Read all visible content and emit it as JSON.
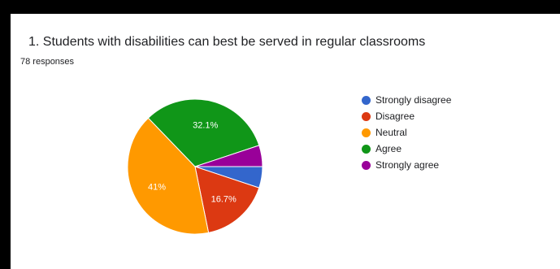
{
  "chart_data": {
    "type": "pie",
    "title": "1. Students with disabilities can best be served in regular classrooms",
    "subtitle": "78 responses",
    "legend_position": "right",
    "series": [
      {
        "name": "Strongly disagree",
        "value": 5.1,
        "color": "#3366cc",
        "label": ""
      },
      {
        "name": "Disagree",
        "value": 16.7,
        "color": "#dc3912",
        "label": "16.7%"
      },
      {
        "name": "Neutral",
        "value": 41.0,
        "color": "#ff9900",
        "label": "41%"
      },
      {
        "name": "Agree",
        "value": 32.1,
        "color": "#109618",
        "label": "32.1%"
      },
      {
        "name": "Strongly agree",
        "value": 5.1,
        "color": "#990099",
        "label": ""
      }
    ]
  }
}
